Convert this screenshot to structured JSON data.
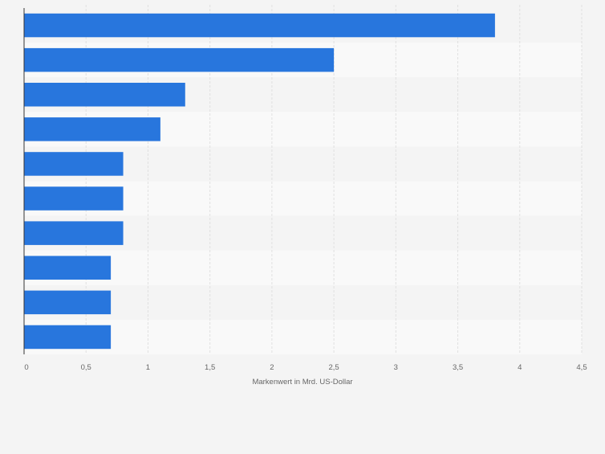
{
  "colors": {
    "bar": "#2876dd",
    "page_background": "#f4f4f4",
    "band_light": "#f9f9f9",
    "band_dark": "#f4f4f4",
    "gridline": "#e0e0e0",
    "axis": "#333333",
    "tick_label": "#666666"
  },
  "chart_data": {
    "type": "bar",
    "orientation": "horizontal",
    "categories": [
      "",
      "",
      "",
      "",
      "",
      "",
      "",
      "",
      "",
      ""
    ],
    "values": [
      3.8,
      2.5,
      1.3,
      1.1,
      0.8,
      0.8,
      0.8,
      0.7,
      0.7,
      0.7
    ],
    "xlabel": "Markenwert in Mrd. US-Dollar",
    "ylabel": "",
    "xlim": [
      0,
      4.5
    ],
    "xticks": [
      0,
      0.5,
      1,
      1.5,
      2,
      2.5,
      3,
      3.5,
      4,
      4.5
    ],
    "xtick_labels": [
      "0",
      "0,5",
      "1",
      "1,5",
      "2",
      "2,5",
      "3",
      "3,5",
      "4",
      "4,5"
    ],
    "grid": "vertical",
    "legend": "none"
  }
}
